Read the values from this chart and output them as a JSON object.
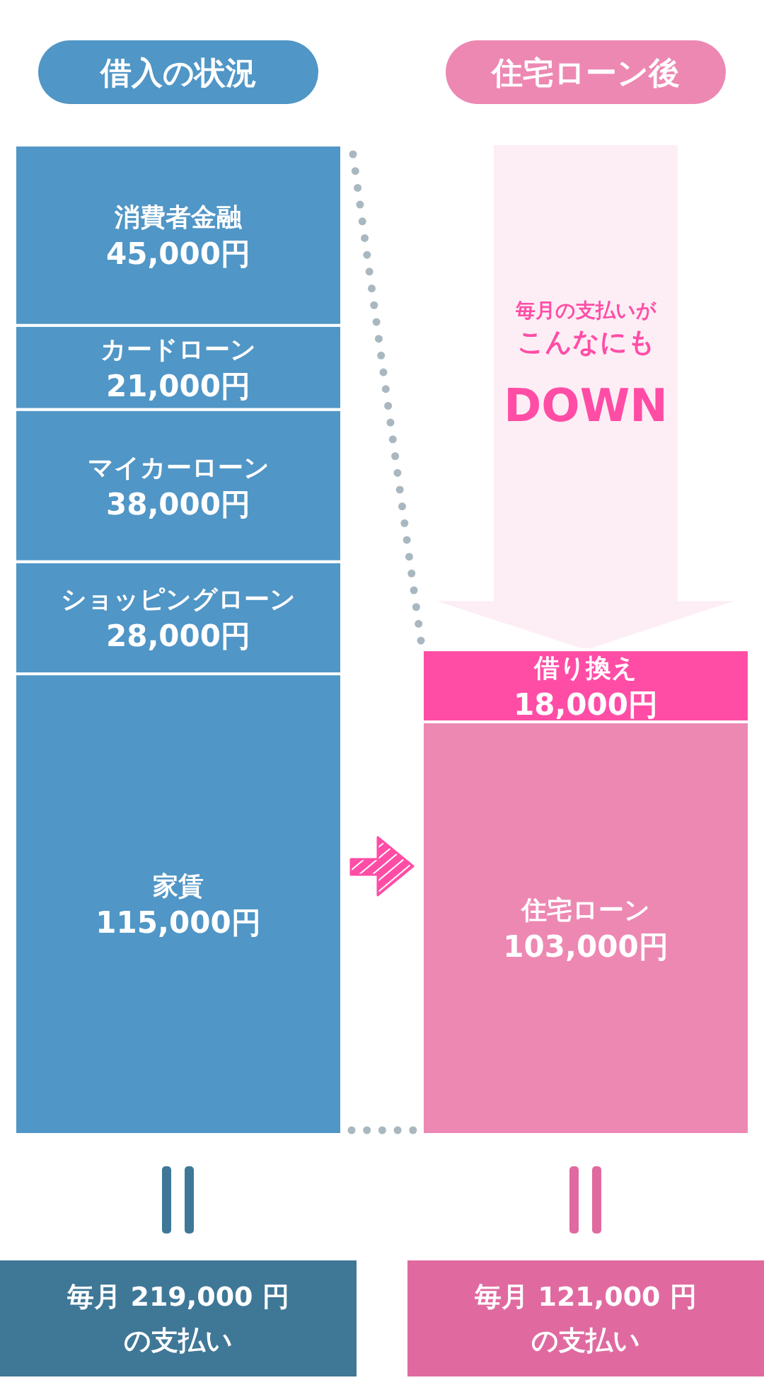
{
  "chart_data": {
    "type": "bar",
    "stacked": true,
    "categories": [
      "借入の状況",
      "住宅ローン後"
    ],
    "series": [
      {
        "name": "家賃",
        "color": "#5096c6",
        "values": [
          115000,
          null
        ],
        "value_labels": [
          "115,000円",
          null
        ]
      },
      {
        "name": "住宅ローン",
        "color": "#ed88b3",
        "values": [
          null,
          103000
        ],
        "value_labels": [
          null,
          "103,000円"
        ]
      },
      {
        "name": "ショッピングローン",
        "color": "#5096c6",
        "values": [
          28000,
          null
        ],
        "value_labels": [
          "28,000円",
          null
        ]
      },
      {
        "name": "借り換え",
        "color": "#ff4da6",
        "values": [
          null,
          18000
        ],
        "value_labels": [
          null,
          "18,000円"
        ]
      },
      {
        "name": "マイカーローン",
        "color": "#5096c6",
        "values": [
          38000,
          null
        ],
        "value_labels": [
          "38,000円",
          null
        ]
      },
      {
        "name": "カードローン",
        "color": "#5096c6",
        "values": [
          21000,
          null
        ],
        "value_labels": [
          "21,000円",
          null
        ]
      },
      {
        "name": "消費者金融",
        "color": "#5096c6",
        "values": [
          45000,
          null
        ],
        "value_labels": [
          "45,000円",
          null
        ]
      }
    ],
    "annotations": [
      "毎月の支払いが",
      "こんなにも",
      "DOWN",
      "毎月 219,000 円の支払い",
      "毎月 121,000 円の支払い"
    ]
  }
}
